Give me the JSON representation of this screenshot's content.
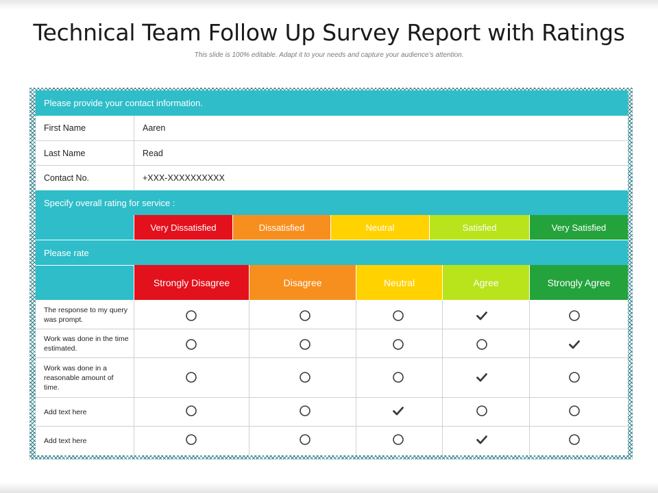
{
  "slide": {
    "title": "Technical Team Follow Up Survey Report with Ratings",
    "subtitle": "This slide is 100% editable. Adapt it to your needs and capture your audience’s attention."
  },
  "contact": {
    "heading": "Please provide your contact information.",
    "rows": [
      {
        "label": "First Name",
        "value": "Aaren"
      },
      {
        "label": "Last Name",
        "value": "Read"
      },
      {
        "label": "Contact No.",
        "value": "+XXX-XXXXXXXXXX"
      }
    ]
  },
  "service": {
    "heading": "Specify overall rating for service :",
    "levels": [
      {
        "label": "Very Dissatisfied",
        "color": "#e3111c"
      },
      {
        "label": "Dissatisfied",
        "color": "#f78f1e"
      },
      {
        "label": "Neutral",
        "color": "#ffd200"
      },
      {
        "label": "Satisfied",
        "color": "#b9e31a"
      },
      {
        "label": "Very Satisfied",
        "color": "#24a33c"
      }
    ]
  },
  "rate": {
    "heading": "Please rate",
    "columns": [
      {
        "label": "Strongly Disagree",
        "color": "#e3111c"
      },
      {
        "label": "Disagree",
        "color": "#f78f1e"
      },
      {
        "label": "Neutral",
        "color": "#ffd200"
      },
      {
        "label": "Agree",
        "color": "#b9e31a"
      },
      {
        "label": "Strongly Agree",
        "color": "#24a33c"
      }
    ],
    "questions": [
      {
        "text": "The response to my query was prompt.",
        "selected": 3
      },
      {
        "text": "Work was done in the time estimated.",
        "selected": 4
      },
      {
        "text": "Work was done in a reasonable amount of time.",
        "selected": 3
      },
      {
        "text": "Add text here",
        "selected": 2
      },
      {
        "text": "Add text here",
        "selected": 3
      }
    ]
  },
  "colors": {
    "band": "#2ebdc9",
    "frame": "#2a7b85",
    "grid": "#d0d0d0",
    "mark": "#3a3a3a"
  },
  "icons": {
    "selected": "checkmark-icon",
    "unselected": "radio-circle-icon"
  }
}
